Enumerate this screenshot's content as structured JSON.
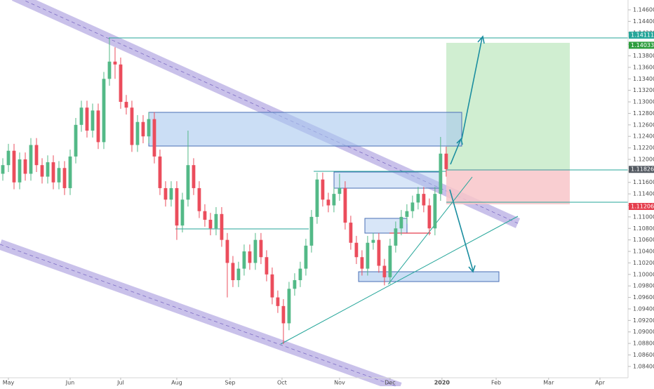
{
  "chart_data": {
    "type": "candlestick",
    "up_color": "#53b987",
    "down_color": "#eb4d5c",
    "xlim": [
      -0.5,
      111.4
    ],
    "ylim": [
      1.08203,
      1.14771
    ],
    "xticks": [
      {
        "value": 1,
        "label": "May"
      },
      {
        "value": 12,
        "label": "Jun"
      },
      {
        "value": 21,
        "label": "Jul"
      },
      {
        "value": 31,
        "label": "Aug"
      },
      {
        "value": 40.5,
        "label": "Sep"
      },
      {
        "value": 49.75,
        "label": "Oct"
      },
      {
        "value": 60,
        "label": "Nov"
      },
      {
        "value": 69,
        "label": "Dec"
      },
      {
        "value": 78.25,
        "label": "2020"
      },
      {
        "value": 87.9,
        "label": "Feb"
      },
      {
        "value": 97.25,
        "label": "Mar"
      },
      {
        "value": 106.4,
        "label": "Apr"
      }
    ],
    "yticks": [
      {
        "value": 1.084,
        "label": "1.08400"
      },
      {
        "value": 1.086,
        "label": "1.08600"
      },
      {
        "value": 1.088,
        "label": "1.08800"
      },
      {
        "value": 1.09,
        "label": "1.09000"
      },
      {
        "value": 1.092,
        "label": "1.09200"
      },
      {
        "value": 1.094,
        "label": "1.09400"
      },
      {
        "value": 1.096,
        "label": "1.09600"
      },
      {
        "value": 1.098,
        "label": "1.09800"
      },
      {
        "value": 1.1,
        "label": "1.10000"
      },
      {
        "value": 1.102,
        "label": "1.10200"
      },
      {
        "value": 1.104,
        "label": "1.10400"
      },
      {
        "value": 1.106,
        "label": "1.10600"
      },
      {
        "value": 1.108,
        "label": "1.10800"
      },
      {
        "value": 1.11,
        "label": "1.11000"
      },
      {
        "value": 1.112,
        "label": "1.11200"
      },
      {
        "value": 1.114,
        "label": "1.11400"
      },
      {
        "value": 1.116,
        "label": "1.11600"
      },
      {
        "value": 1.118,
        "label": "1.11800"
      },
      {
        "value": 1.12,
        "label": "1.12000"
      },
      {
        "value": 1.122,
        "label": "1.12200"
      },
      {
        "value": 1.124,
        "label": "1.12400"
      },
      {
        "value": 1.126,
        "label": "1.12600"
      },
      {
        "value": 1.128,
        "label": "1.12800"
      },
      {
        "value": 1.13,
        "label": "1.13000"
      },
      {
        "value": 1.132,
        "label": "1.13200"
      },
      {
        "value": 1.134,
        "label": "1.13400"
      },
      {
        "value": 1.136,
        "label": "1.13600"
      },
      {
        "value": 1.138,
        "label": "1.13800"
      },
      {
        "value": 1.14,
        "label": "1.14000"
      },
      {
        "value": 1.142,
        "label": "1.14200"
      },
      {
        "value": 1.144,
        "label": "1.14400"
      },
      {
        "value": 1.146,
        "label": "1.14600"
      }
    ],
    "open": [
      1.1175,
      1.119,
      1.1215,
      1.116,
      1.12,
      1.1175,
      1.1225,
      1.119,
      1.117,
      1.1195,
      1.116,
      1.1185,
      1.115,
      1.1205,
      1.126,
      1.129,
      1.125,
      1.1285,
      1.123,
      1.134,
      1.137,
      1.1365,
      1.13,
      1.129,
      1.1225,
      1.1265,
      1.124,
      1.127,
      1.1205,
      1.115,
      1.113,
      1.115,
      1.1085,
      1.113,
      1.119,
      1.115,
      1.111,
      1.1095,
      1.108,
      1.1105,
      1.106,
      1.102,
      1.099,
      1.101,
      1.104,
      1.102,
      1.106,
      1.103,
      1.1,
      1.096,
      1.0945,
      1.0915,
      1.0975,
      1.099,
      1.101,
      1.105,
      1.11,
      1.1165,
      1.113,
      1.112,
      1.114,
      1.115,
      1.109,
      1.1055,
      1.103,
      1.101,
      1.1055,
      1.106,
      1.1015,
      1.0995,
      1.105,
      1.108,
      1.11,
      1.111,
      1.1125,
      1.114,
      1.112,
      1.108,
      1.114,
      1.121
    ],
    "high": [
      1.1202,
      1.1227,
      1.1227,
      1.1212,
      1.1212,
      1.1237,
      1.1237,
      1.1202,
      1.1207,
      1.1207,
      1.1197,
      1.1197,
      1.1217,
      1.1272,
      1.1302,
      1.1302,
      1.1297,
      1.1297,
      1.1352,
      1.1412,
      1.1395,
      1.1377,
      1.1312,
      1.1302,
      1.1277,
      1.1277,
      1.1282,
      1.1282,
      1.1217,
      1.1162,
      1.1162,
      1.1162,
      1.1142,
      1.125,
      1.1202,
      1.1162,
      1.1122,
      1.1107,
      1.1117,
      1.1117,
      1.1072,
      1.1032,
      1.1022,
      1.1052,
      1.1052,
      1.1072,
      1.1072,
      1.1042,
      1.1012,
      1.0972,
      1.0957,
      1.0987,
      1.1002,
      1.1022,
      1.1062,
      1.1112,
      1.1177,
      1.1177,
      1.1142,
      1.1152,
      1.1175,
      1.1162,
      1.1102,
      1.1067,
      1.1042,
      1.1067,
      1.1072,
      1.1072,
      1.1027,
      1.1062,
      1.1092,
      1.1112,
      1.1122,
      1.1137,
      1.1152,
      1.1152,
      1.1132,
      1.1152,
      1.1239,
      1.1222
    ],
    "low": [
      1.1163,
      1.1178,
      1.1148,
      1.1148,
      1.1163,
      1.1163,
      1.1178,
      1.1158,
      1.1158,
      1.1148,
      1.1148,
      1.1138,
      1.1138,
      1.1193,
      1.1248,
      1.1238,
      1.1238,
      1.1218,
      1.1218,
      1.1328,
      1.134,
      1.1288,
      1.1278,
      1.1213,
      1.1213,
      1.1228,
      1.1228,
      1.1193,
      1.1138,
      1.1118,
      1.1118,
      1.106,
      1.1073,
      1.1118,
      1.1138,
      1.1098,
      1.1083,
      1.1068,
      1.1068,
      1.1048,
      1.096,
      1.0978,
      1.0978,
      1.0998,
      1.1008,
      1.1008,
      1.1018,
      1.0988,
      1.0948,
      1.0933,
      1.0879,
      1.0903,
      1.0963,
      1.0978,
      1.0998,
      1.1038,
      1.1088,
      1.1118,
      1.1108,
      1.1108,
      1.1128,
      1.1078,
      1.1043,
      1.1018,
      1.0998,
      1.0998,
      1.1043,
      1.1003,
      1.0981,
      1.0983,
      1.1038,
      1.1068,
      1.1088,
      1.1098,
      1.1113,
      1.1108,
      1.1068,
      1.1068,
      1.1128,
      1.117
    ],
    "close": [
      1.119,
      1.1215,
      1.116,
      1.12,
      1.1175,
      1.1225,
      1.119,
      1.117,
      1.1195,
      1.116,
      1.1185,
      1.115,
      1.1205,
      1.126,
      1.129,
      1.125,
      1.1285,
      1.123,
      1.134,
      1.137,
      1.1365,
      1.13,
      1.129,
      1.1225,
      1.1265,
      1.124,
      1.127,
      1.1205,
      1.115,
      1.113,
      1.115,
      1.1085,
      1.113,
      1.119,
      1.115,
      1.111,
      1.1095,
      1.108,
      1.1105,
      1.106,
      1.102,
      1.099,
      1.101,
      1.104,
      1.102,
      1.106,
      1.103,
      1.1,
      1.096,
      1.0945,
      1.0915,
      1.0975,
      1.099,
      1.101,
      1.105,
      1.11,
      1.1165,
      1.113,
      1.112,
      1.114,
      1.115,
      1.109,
      1.1055,
      1.103,
      1.101,
      1.1055,
      1.106,
      1.1015,
      1.0995,
      1.105,
      1.108,
      1.11,
      1.111,
      1.1125,
      1.114,
      1.112,
      1.108,
      1.114,
      1.121,
      1.1183
    ],
    "price_labels": [
      {
        "value": 1.14111,
        "color": "#26a69a"
      },
      {
        "value": 1.14033,
        "color": "#2e9e3e"
      },
      {
        "value": 1.11826,
        "color": "#555b63"
      },
      {
        "value": 1.11206,
        "color": "#e53e4d"
      }
    ]
  }
}
